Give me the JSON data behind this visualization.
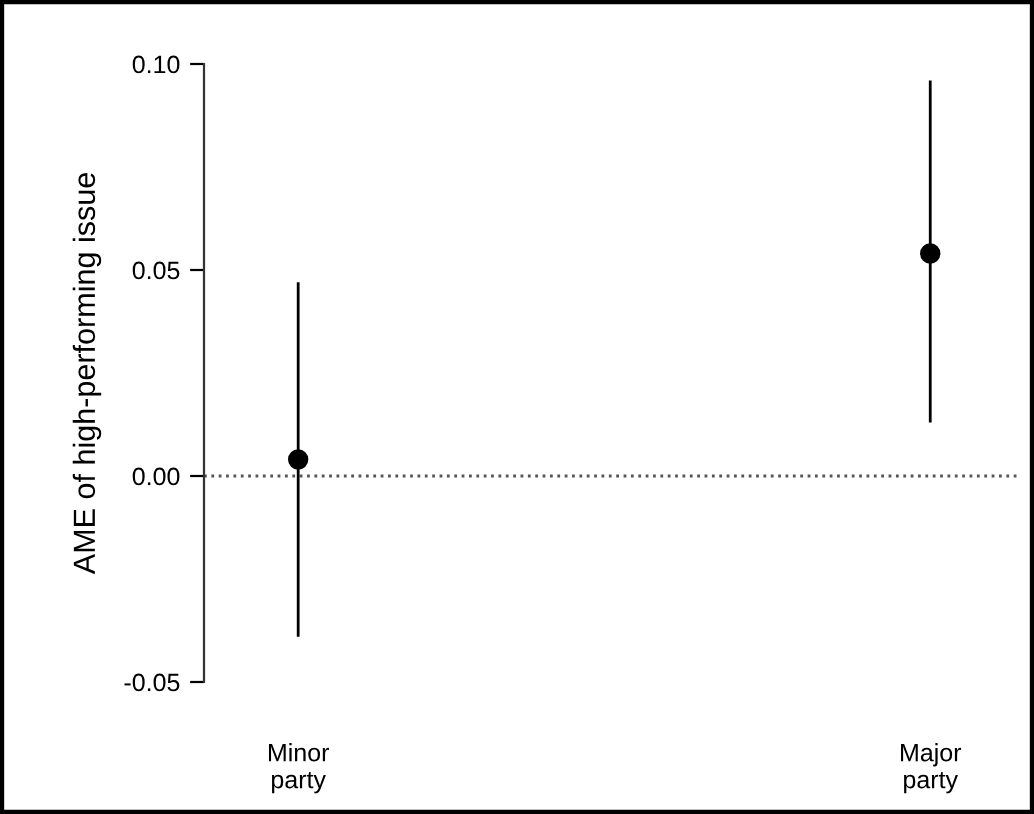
{
  "chart_data": {
    "type": "scatter",
    "ylabel": "AME of high-performing issue",
    "categories": [
      "Minor\nparty",
      "Major\nparty"
    ],
    "values": [
      0.004,
      0.054
    ],
    "errors": [
      [
        -0.039,
        0.047
      ],
      [
        0.013,
        0.096
      ]
    ],
    "color": "#000000",
    "marker": "circle",
    "ylim": [
      -0.05,
      0.1
    ],
    "yticks": [
      {
        "value": -0.05,
        "label": "-0.05"
      },
      {
        "value": 0,
        "label": "0.00"
      },
      0.05,
      {
        "value": 0.1,
        "label": "0.10"
      }
    ],
    "ref_lines": [
      {
        "axis": "y",
        "value": 0,
        "line_style": "dotted",
        "color": "#555555"
      }
    ],
    "grid": false,
    "legend": false
  }
}
